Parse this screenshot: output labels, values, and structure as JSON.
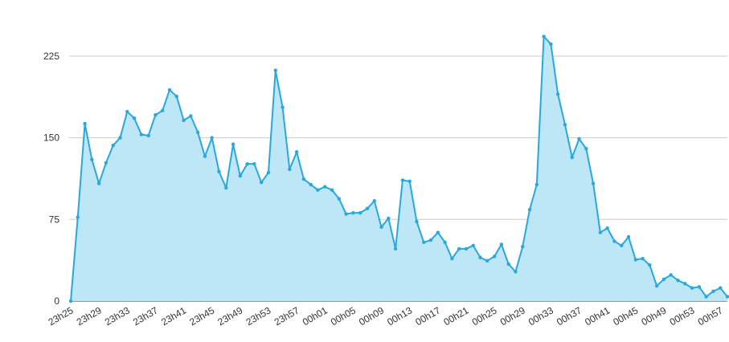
{
  "colors": {
    "line": "#29a8db",
    "area": "#bde6f6",
    "grid": "#cccccc",
    "axis": "#333333"
  },
  "chart_data": {
    "type": "area",
    "title": "",
    "xlabel": "",
    "ylabel": "",
    "ylim": [
      0,
      250
    ],
    "yticks": [
      0,
      75,
      150,
      225
    ],
    "grid": true,
    "legend": "none",
    "xtick_labels": [
      "23h25",
      "23h29",
      "23h33",
      "23h37",
      "23h41",
      "23h45",
      "23h49",
      "23h53",
      "23h57",
      "00h01",
      "00h05",
      "00h09",
      "00h13",
      "00h17",
      "00h21",
      "00h25",
      "00h29",
      "00h33",
      "00h37",
      "00h41",
      "00h45",
      "00h49",
      "00h53",
      "00h57"
    ],
    "series": [
      {
        "values": [
          0,
          77,
          163,
          130,
          108,
          127,
          143,
          150,
          174,
          168,
          153,
          152,
          171,
          175,
          194,
          188,
          166,
          170,
          155,
          133,
          150,
          119,
          104,
          144,
          115,
          126,
          126,
          109,
          118,
          212,
          178,
          121,
          137,
          112,
          107,
          102,
          105,
          102,
          94,
          80,
          81,
          81,
          85,
          92,
          68,
          76,
          48,
          111,
          110,
          73,
          54,
          56,
          63,
          54,
          39,
          48,
          48,
          51,
          40,
          37,
          41,
          52,
          34,
          27,
          50,
          84,
          107,
          243,
          236,
          190,
          162,
          132,
          149,
          140,
          108,
          63,
          67,
          55,
          51,
          59,
          38,
          39,
          33,
          14,
          20,
          24,
          19,
          16,
          12,
          13,
          4,
          9,
          12,
          4
        ]
      }
    ]
  }
}
